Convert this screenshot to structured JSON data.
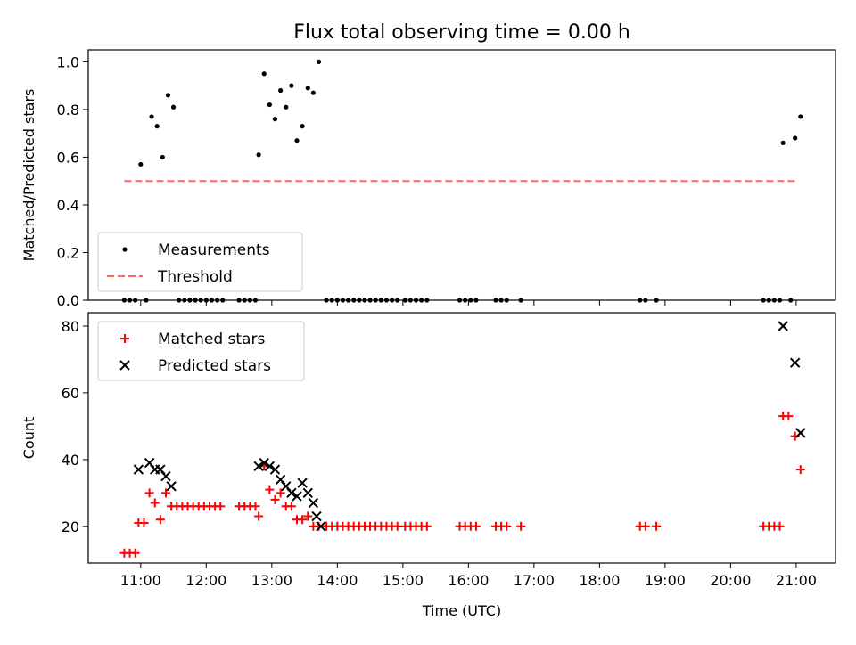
{
  "chart_data": [
    {
      "type": "scatter",
      "title": "Flux total observing time = 0.00 h",
      "xlabel": "",
      "ylabel": "Matched/Predicted stars",
      "xlim": [
        "10:12",
        "21:36"
      ],
      "ylim": [
        0,
        1.05
      ],
      "yticks": [
        "0.0",
        "0.2",
        "0.4",
        "0.6",
        "0.8",
        "1.0"
      ],
      "legend": {
        "placement": "lower-left",
        "entries": [
          "Measurements",
          "Threshold"
        ]
      },
      "series": [
        {
          "name": "Measurements",
          "color": "#000000",
          "marker": "dot",
          "points": [
            [
              "10:45",
              0
            ],
            [
              "10:50",
              0
            ],
            [
              "10:55",
              0
            ],
            [
              "11:00",
              0.57
            ],
            [
              "11:05",
              0
            ],
            [
              "11:10",
              0.77
            ],
            [
              "11:15",
              0.73
            ],
            [
              "11:20",
              0.6
            ],
            [
              "11:25",
              0.86
            ],
            [
              "11:30",
              0.81
            ],
            [
              "11:35",
              0
            ],
            [
              "11:40",
              0
            ],
            [
              "11:45",
              0
            ],
            [
              "11:50",
              0
            ],
            [
              "11:55",
              0
            ],
            [
              "12:00",
              0
            ],
            [
              "12:05",
              0
            ],
            [
              "12:10",
              0
            ],
            [
              "12:15",
              0
            ],
            [
              "12:30",
              0
            ],
            [
              "12:35",
              0
            ],
            [
              "12:40",
              0
            ],
            [
              "12:45",
              0
            ],
            [
              "12:48",
              0.61
            ],
            [
              "12:53",
              0.95
            ],
            [
              "12:58",
              0.82
            ],
            [
              "13:03",
              0.76
            ],
            [
              "13:08",
              0.88
            ],
            [
              "13:13",
              0.81
            ],
            [
              "13:18",
              0.9
            ],
            [
              "13:23",
              0.67
            ],
            [
              "13:28",
              0.73
            ],
            [
              "13:33",
              0.89
            ],
            [
              "13:38",
              0.87
            ],
            [
              "13:43",
              1.0
            ],
            [
              "13:50",
              0
            ],
            [
              "13:55",
              0
            ],
            [
              "14:00",
              0
            ],
            [
              "14:05",
              0
            ],
            [
              "14:10",
              0
            ],
            [
              "14:15",
              0
            ],
            [
              "14:20",
              0
            ],
            [
              "14:25",
              0
            ],
            [
              "14:30",
              0
            ],
            [
              "14:35",
              0
            ],
            [
              "14:40",
              0
            ],
            [
              "14:45",
              0
            ],
            [
              "14:50",
              0
            ],
            [
              "14:55",
              0
            ],
            [
              "15:02",
              0
            ],
            [
              "15:07",
              0
            ],
            [
              "15:12",
              0
            ],
            [
              "15:17",
              0
            ],
            [
              "15:22",
              0
            ],
            [
              "15:52",
              0
            ],
            [
              "15:57",
              0
            ],
            [
              "16:02",
              0
            ],
            [
              "16:07",
              0
            ],
            [
              "16:25",
              0
            ],
            [
              "16:30",
              0
            ],
            [
              "16:35",
              0
            ],
            [
              "16:48",
              0
            ],
            [
              "18:37",
              0
            ],
            [
              "18:42",
              0
            ],
            [
              "18:52",
              0
            ],
            [
              "20:30",
              0
            ],
            [
              "20:35",
              0
            ],
            [
              "20:40",
              0
            ],
            [
              "20:45",
              0
            ],
            [
              "20:48",
              0.66
            ],
            [
              "20:55",
              0
            ],
            [
              "20:59",
              0.68
            ],
            [
              "21:04",
              0.77
            ]
          ]
        },
        {
          "name": "Threshold",
          "color": "#ff6666",
          "style": "dashed",
          "points": [
            [
              "10:45",
              0.5
            ],
            [
              "21:00",
              0.5
            ]
          ]
        }
      ]
    },
    {
      "type": "scatter",
      "title": "",
      "xlabel": "Time (UTC)",
      "ylabel": "Count",
      "xlim": [
        "10:12",
        "21:36"
      ],
      "ylim": [
        9,
        84
      ],
      "yticks": [
        20,
        40,
        60,
        80
      ],
      "xticks": [
        "11:00",
        "12:00",
        "13:00",
        "14:00",
        "15:00",
        "16:00",
        "17:00",
        "18:00",
        "19:00",
        "20:00",
        "21:00"
      ],
      "legend": {
        "placement": "top-left",
        "entries": [
          "Matched stars",
          "Predicted stars"
        ]
      },
      "series": [
        {
          "name": "Matched stars",
          "color": "#ff0000",
          "marker": "plus",
          "points": [
            [
              "10:45",
              12
            ],
            [
              "10:50",
              12
            ],
            [
              "10:55",
              12
            ],
            [
              "10:58",
              21
            ],
            [
              "11:03",
              21
            ],
            [
              "11:08",
              30
            ],
            [
              "11:13",
              27
            ],
            [
              "11:18",
              22
            ],
            [
              "11:23",
              30
            ],
            [
              "11:28",
              26
            ],
            [
              "11:33",
              26
            ],
            [
              "11:38",
              26
            ],
            [
              "11:43",
              26
            ],
            [
              "11:48",
              26
            ],
            [
              "11:53",
              26
            ],
            [
              "11:58",
              26
            ],
            [
              "12:03",
              26
            ],
            [
              "12:08",
              26
            ],
            [
              "12:13",
              26
            ],
            [
              "12:30",
              26
            ],
            [
              "12:35",
              26
            ],
            [
              "12:40",
              26
            ],
            [
              "12:45",
              26
            ],
            [
              "12:48",
              23
            ],
            [
              "12:53",
              38
            ],
            [
              "12:58",
              31
            ],
            [
              "13:03",
              28
            ],
            [
              "13:08",
              30
            ],
            [
              "13:13",
              26
            ],
            [
              "13:18",
              26
            ],
            [
              "13:23",
              22
            ],
            [
              "13:28",
              22
            ],
            [
              "13:33",
              23
            ],
            [
              "13:38",
              20
            ],
            [
              "13:43",
              20
            ],
            [
              "13:50",
              20
            ],
            [
              "13:55",
              20
            ],
            [
              "14:00",
              20
            ],
            [
              "14:05",
              20
            ],
            [
              "14:10",
              20
            ],
            [
              "14:15",
              20
            ],
            [
              "14:20",
              20
            ],
            [
              "14:25",
              20
            ],
            [
              "14:30",
              20
            ],
            [
              "14:35",
              20
            ],
            [
              "14:40",
              20
            ],
            [
              "14:45",
              20
            ],
            [
              "14:50",
              20
            ],
            [
              "14:55",
              20
            ],
            [
              "15:02",
              20
            ],
            [
              "15:07",
              20
            ],
            [
              "15:12",
              20
            ],
            [
              "15:17",
              20
            ],
            [
              "15:22",
              20
            ],
            [
              "15:52",
              20
            ],
            [
              "15:57",
              20
            ],
            [
              "16:02",
              20
            ],
            [
              "16:07",
              20
            ],
            [
              "16:25",
              20
            ],
            [
              "16:30",
              20
            ],
            [
              "16:35",
              20
            ],
            [
              "16:48",
              20
            ],
            [
              "18:37",
              20
            ],
            [
              "18:42",
              20
            ],
            [
              "18:52",
              20
            ],
            [
              "20:30",
              20
            ],
            [
              "20:35",
              20
            ],
            [
              "20:40",
              20
            ],
            [
              "20:45",
              20
            ],
            [
              "20:48",
              53
            ],
            [
              "20:53",
              53
            ],
            [
              "20:59",
              47
            ],
            [
              "21:04",
              37
            ]
          ]
        },
        {
          "name": "Predicted stars",
          "color": "#000000",
          "marker": "x",
          "points": [
            [
              "10:58",
              37
            ],
            [
              "11:08",
              39
            ],
            [
              "11:13",
              37
            ],
            [
              "11:18",
              37
            ],
            [
              "11:23",
              35
            ],
            [
              "11:28",
              32
            ],
            [
              "12:48",
              38
            ],
            [
              "12:53",
              39
            ],
            [
              "12:58",
              38
            ],
            [
              "13:03",
              37
            ],
            [
              "13:08",
              34
            ],
            [
              "13:13",
              32
            ],
            [
              "13:18",
              30
            ],
            [
              "13:23",
              29
            ],
            [
              "13:28",
              33
            ],
            [
              "13:33",
              30
            ],
            [
              "13:38",
              27
            ],
            [
              "13:41",
              23
            ],
            [
              "13:45",
              20
            ],
            [
              "20:48",
              80
            ],
            [
              "20:59",
              69
            ],
            [
              "21:04",
              48
            ]
          ]
        }
      ]
    }
  ]
}
